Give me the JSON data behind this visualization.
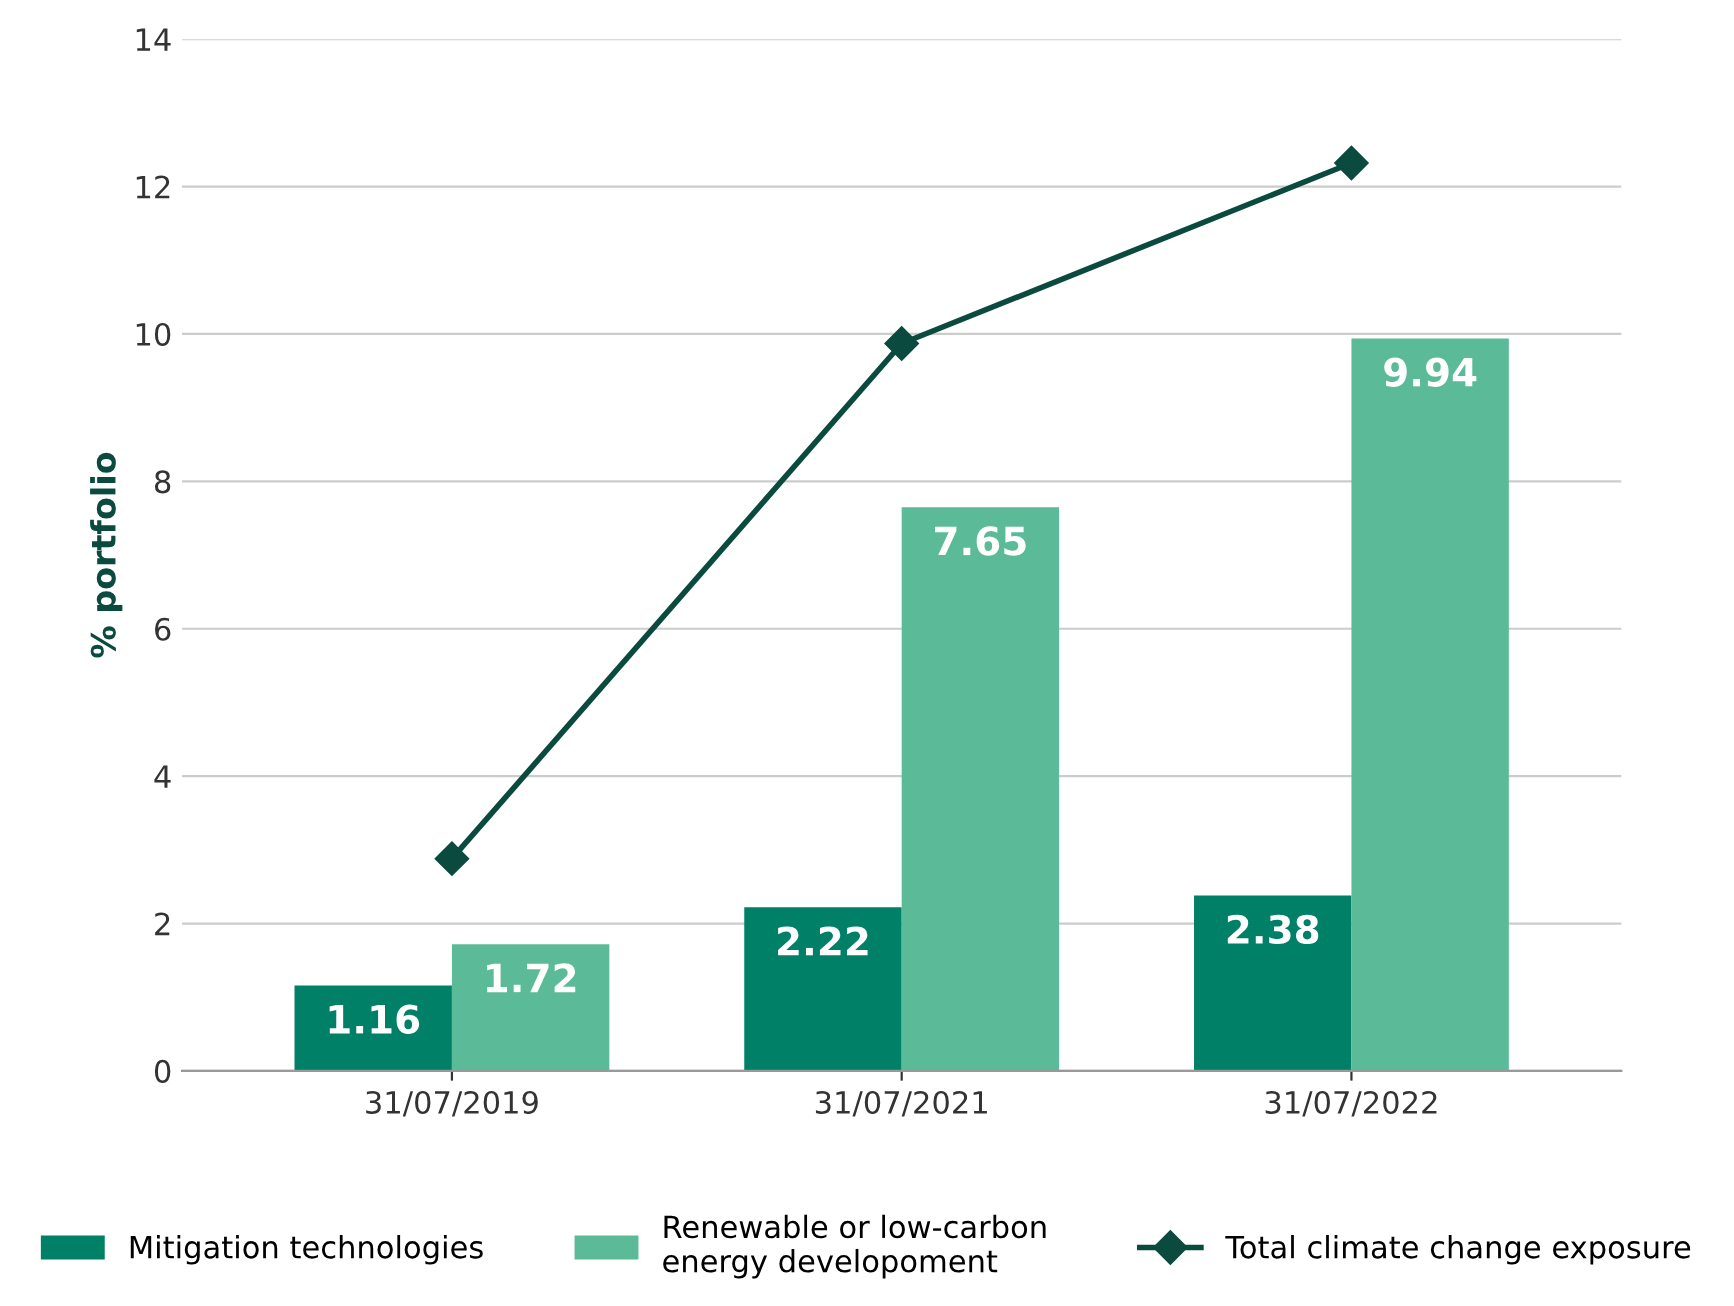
{
  "chart_data": {
    "type": "bar",
    "ylabel": "% portfolio",
    "categories": [
      "31/07/2019",
      "31/07/2021",
      "31/07/2022"
    ],
    "series": [
      {
        "name": "Mitigation technologies",
        "color": "#008066",
        "values": [
          1.16,
          2.22,
          2.38
        ],
        "value_labels": [
          "1.16",
          "2.22",
          "2.38"
        ]
      },
      {
        "name": "Renewable or low-carbon\nenergy developoment",
        "color": "#5bbb98",
        "values": [
          1.72,
          7.65,
          9.94
        ],
        "value_labels": [
          "1.72",
          "7.65",
          "9.94"
        ]
      },
      {
        "name": "Total climate change exposure",
        "color": "#0b4a3f",
        "type": "line",
        "marker": "diamond",
        "values": [
          2.88,
          9.87,
          12.32
        ]
      }
    ],
    "ylim": [
      0,
      14
    ],
    "yticks": [
      0,
      2,
      4,
      6,
      8,
      10,
      12,
      14
    ],
    "grid": "y",
    "legend": "bottom"
  }
}
